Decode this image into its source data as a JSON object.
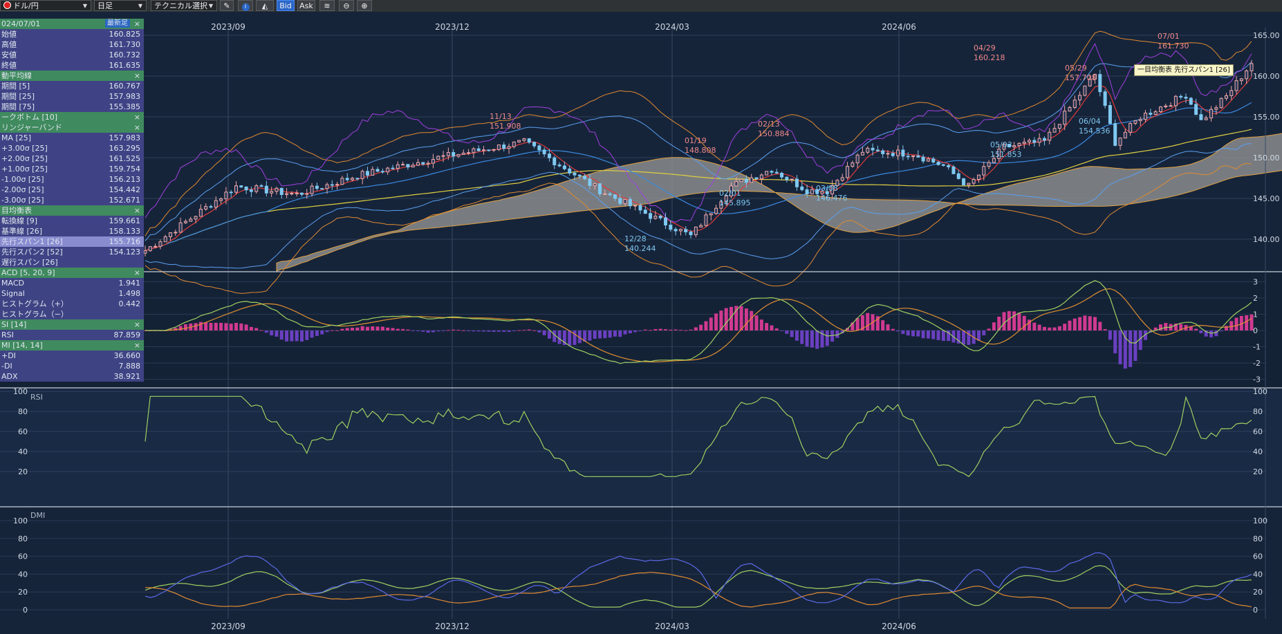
{
  "toolbar": {
    "pair": "ドル/円",
    "timeframe": "日足",
    "technical": "テクニカル選択",
    "bid": "Bid",
    "ask": "Ask"
  },
  "x_axis": {
    "labels": [
      "2023/09",
      "2023/12",
      "2024/03",
      "2024/06"
    ]
  },
  "panes": {
    "price": {
      "ticks": [
        "165.00",
        "160.00",
        "155.00",
        "150.00",
        "145.00",
        "140.00"
      ]
    },
    "macd": {
      "ticks": [
        "3",
        "2",
        "1",
        "0",
        "-1",
        "-2",
        "-3"
      ]
    },
    "rsi": {
      "label": "RSI",
      "ticks": [
        "100",
        "80",
        "60",
        "40",
        "20"
      ]
    },
    "dmi": {
      "label": "DMI",
      "ticks": [
        "100",
        "80",
        "60",
        "40",
        "20",
        "0"
      ]
    }
  },
  "annotations": [
    {
      "date": "11/13",
      "value": "151.908",
      "type": "high"
    },
    {
      "date": "01/19",
      "value": "148.808",
      "type": "high"
    },
    {
      "date": "02/13",
      "value": "150.884",
      "type": "high"
    },
    {
      "date": "04/29",
      "value": "160.218",
      "type": "high"
    },
    {
      "date": "05/29",
      "value": "157.708",
      "type": "high"
    },
    {
      "date": "07/01",
      "value": "161.730",
      "type": "high"
    },
    {
      "date": "12/28",
      "value": "140.244",
      "type": "low"
    },
    {
      "date": "02/01",
      "value": "145.895",
      "type": "low"
    },
    {
      "date": "03/08",
      "value": "146.476",
      "type": "low"
    },
    {
      "date": "05/03",
      "value": "151.853",
      "type": "low"
    },
    {
      "date": "06/04",
      "value": "154.536",
      "type": "low"
    }
  ],
  "tooltip": "一目均衡表 先行スパン1 [26]",
  "panel": {
    "date": "024/07/01",
    "latest": "最新足",
    "close_x": "×",
    "ohlc": [
      {
        "label": "始値",
        "value": "160.825"
      },
      {
        "label": "高値",
        "value": "161.730"
      },
      {
        "label": "安値",
        "value": "160.732"
      },
      {
        "label": "終値",
        "value": "161.635"
      }
    ],
    "ma_header": "動平均線",
    "ma": [
      {
        "label": "期間 [5]",
        "value": "160.767"
      },
      {
        "label": "期間 [25]",
        "value": "157.983"
      },
      {
        "label": "期間 [75]",
        "value": "155.385"
      }
    ],
    "zigzag_header": "ークボトム [10]",
    "bb_header": "リンジャーバンド",
    "bb": [
      {
        "label": "MA [25]",
        "value": "157.983"
      },
      {
        "label": "+3.00σ [25]",
        "value": "163.295"
      },
      {
        "label": "+2.00σ [25]",
        "value": "161.525"
      },
      {
        "label": "+1.00σ [25]",
        "value": "159.754"
      },
      {
        "label": "-1.00σ [25]",
        "value": "156.213"
      },
      {
        "label": "-2.00σ [25]",
        "value": "154.442"
      },
      {
        "label": "-3.00σ [25]",
        "value": "152.671"
      }
    ],
    "ichimoku_header": "目均衡表",
    "ichimoku": [
      {
        "label": "転換線 [9]",
        "value": "159.661"
      },
      {
        "label": "基準線 [26]",
        "value": "158.133"
      },
      {
        "label": "先行スパン1 [26]",
        "value": "155.716"
      },
      {
        "label": "先行スパン2 [52]",
        "value": "154.123"
      },
      {
        "label": "遅行スパン [26]",
        "value": ""
      }
    ],
    "macd_header": "ACD [5, 20, 9]",
    "macd": [
      {
        "label": "MACD",
        "value": "1.941"
      },
      {
        "label": "Signal",
        "value": "1.498"
      },
      {
        "label": "ヒストグラム（+）",
        "value": "0.442"
      },
      {
        "label": "ヒストグラム（−）",
        "value": ""
      }
    ],
    "rsi_header": "SI [14]",
    "rsi": [
      {
        "label": "RSI",
        "value": "87.859"
      }
    ],
    "dmi_header": "MI [14, 14]",
    "dmi": [
      {
        "label": "+DI",
        "value": "36.660"
      },
      {
        "label": "-DI",
        "value": "7.888"
      },
      {
        "label": "ADX",
        "value": "38.921"
      }
    ]
  },
  "colors": {
    "background": "#16243a",
    "panel": "#484a96",
    "panel_header": "#3f8a5e",
    "up_candle": "#f2a8a8",
    "down_candle": "#7fc8f0",
    "ma5": "#e03a3a",
    "ma25": "#3a8ae0",
    "ma75": "#e0d040",
    "bollinger": "#e08a30",
    "kijun": "#a040e0",
    "cloud": "#9a9a9a",
    "macd_line": "#9fd060",
    "signal_line": "#e09030",
    "hist_pos": "#d03a90",
    "hist_neg": "#6a40c0",
    "rsi_line": "#9fd060",
    "plus_di": "#9fd060",
    "minus_di": "#e08a30",
    "adx": "#5a6ae8"
  }
}
